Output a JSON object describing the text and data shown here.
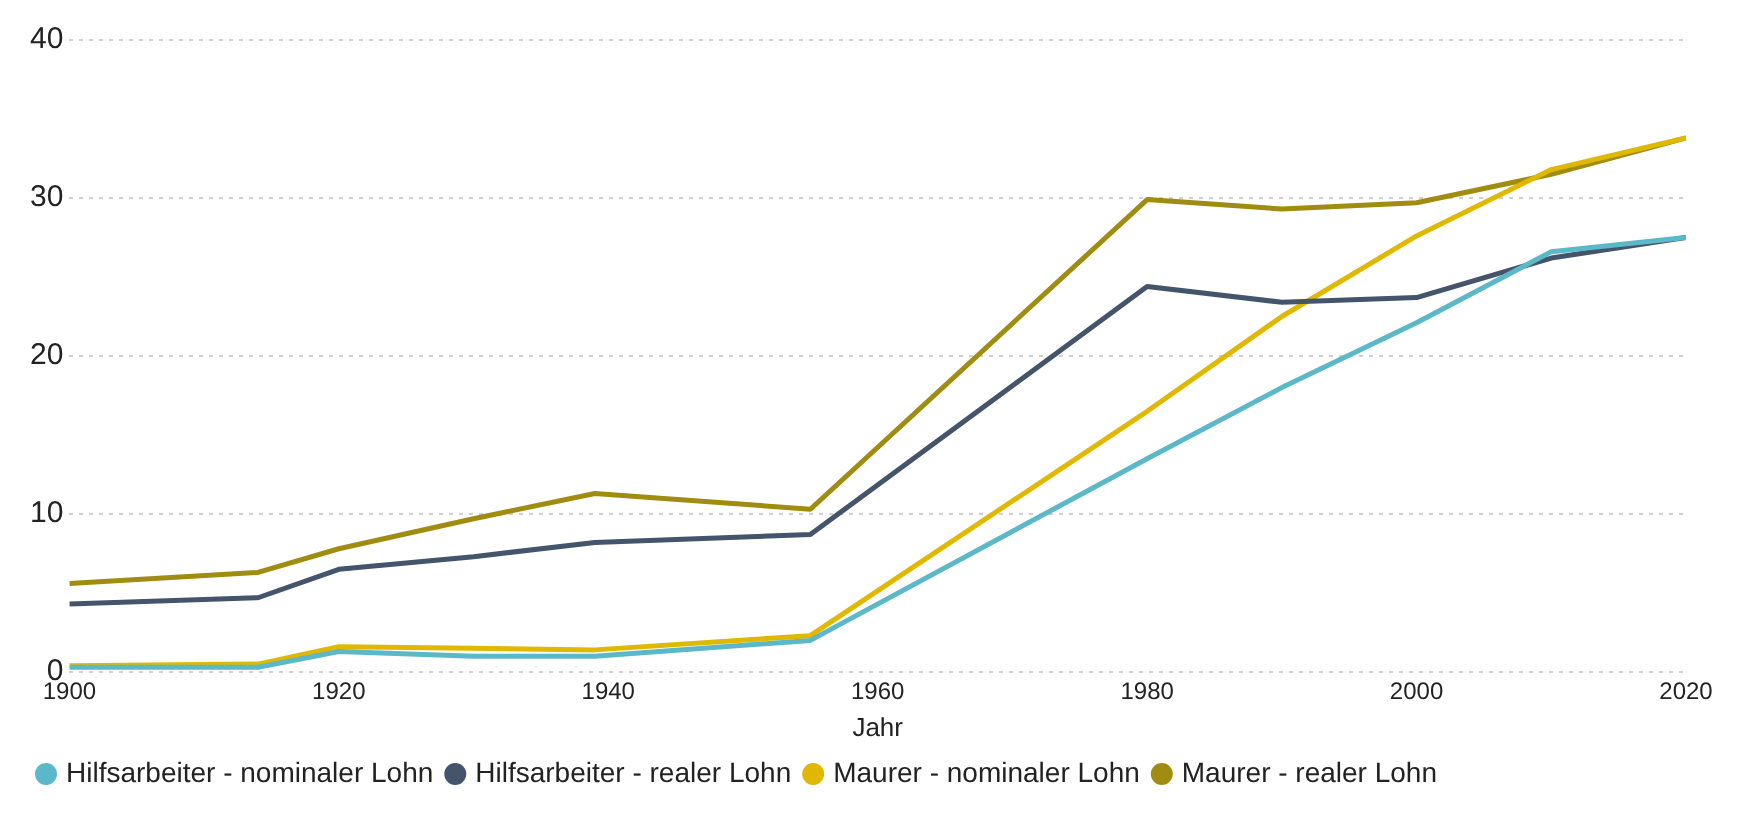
{
  "chart_data": {
    "type": "line",
    "xlabel": "Jahr",
    "x": [
      1900,
      1914,
      1920,
      1930,
      1939,
      1955,
      1980,
      1990,
      2000,
      2010,
      2020
    ],
    "series": [
      {
        "name": "Hilfsarbeiter - nominaler Lohn",
        "color": "#5bb8c9",
        "values": [
          0.3,
          0.3,
          1.3,
          1.0,
          1.0,
          2.0,
          13.5,
          18.0,
          22.1,
          26.6,
          27.5
        ]
      },
      {
        "name": "Hilfsarbeiter - realer Lohn",
        "color": "#44546a",
        "values": [
          4.3,
          4.7,
          6.5,
          7.3,
          8.2,
          8.7,
          24.4,
          23.4,
          23.7,
          26.2,
          27.5
        ]
      },
      {
        "name": "Maurer - nominaler Lohn",
        "color": "#e0b800",
        "values": [
          0.4,
          0.5,
          1.6,
          1.5,
          1.4,
          2.3,
          16.5,
          22.5,
          27.6,
          31.8,
          33.8
        ]
      },
      {
        "name": "Maurer - realer Lohn",
        "color": "#a08c10",
        "values": [
          5.6,
          6.3,
          7.8,
          9.7,
          11.3,
          10.3,
          29.9,
          29.3,
          29.7,
          31.5,
          33.8
        ]
      }
    ],
    "xlim": [
      1900,
      2020
    ],
    "xticks": [
      1900,
      1920,
      1940,
      1960,
      1980,
      2000,
      2020
    ],
    "ylim": [
      0,
      40
    ],
    "yticks": [
      0,
      10,
      20,
      30,
      40
    ],
    "grid": "y",
    "legend": "bottom",
    "marker": "none",
    "line_style": "solid"
  }
}
